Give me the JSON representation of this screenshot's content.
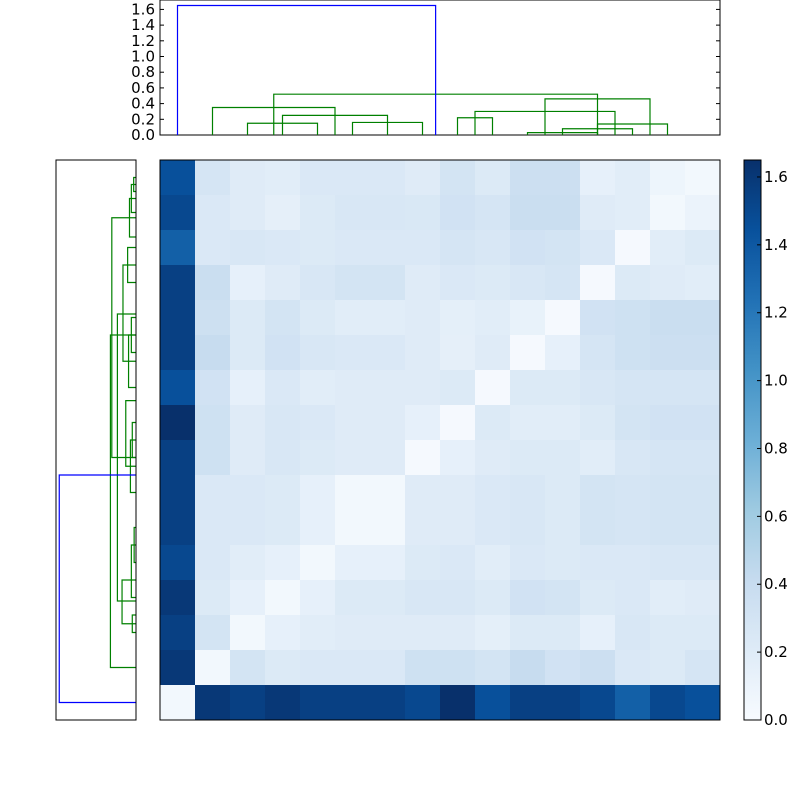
{
  "chart_data": {
    "type": "heatmap",
    "title": "",
    "xlabel": "",
    "ylabel": "",
    "colormap": "Blues",
    "colors": {
      "dendrogram_cross_cluster": "#0000ff",
      "dendrogram_within_cluster": "#008000",
      "axes_frame": "#000000"
    },
    "matrix": [
      [
        1.45,
        0.28,
        0.2,
        0.18,
        0.24,
        0.24,
        0.24,
        0.2,
        0.3,
        0.22,
        0.36,
        0.36,
        0.14,
        0.18,
        0.08,
        0.04
      ],
      [
        1.5,
        0.24,
        0.2,
        0.15,
        0.22,
        0.26,
        0.26,
        0.25,
        0.32,
        0.28,
        0.38,
        0.38,
        0.2,
        0.18,
        0.04,
        0.1
      ],
      [
        1.35,
        0.24,
        0.26,
        0.24,
        0.22,
        0.24,
        0.24,
        0.24,
        0.28,
        0.26,
        0.32,
        0.3,
        0.24,
        0.02,
        0.18,
        0.22
      ],
      [
        1.55,
        0.38,
        0.14,
        0.2,
        0.26,
        0.3,
        0.3,
        0.2,
        0.24,
        0.22,
        0.26,
        0.28,
        0.02,
        0.22,
        0.2,
        0.18
      ],
      [
        1.55,
        0.35,
        0.22,
        0.3,
        0.22,
        0.18,
        0.18,
        0.2,
        0.16,
        0.18,
        0.12,
        0.02,
        0.32,
        0.34,
        0.38,
        0.38
      ],
      [
        1.55,
        0.4,
        0.22,
        0.32,
        0.26,
        0.24,
        0.24,
        0.2,
        0.15,
        0.2,
        0.02,
        0.14,
        0.28,
        0.34,
        0.36,
        0.36
      ],
      [
        1.45,
        0.32,
        0.14,
        0.24,
        0.18,
        0.2,
        0.2,
        0.2,
        0.22,
        0.02,
        0.22,
        0.22,
        0.26,
        0.28,
        0.28,
        0.28
      ],
      [
        1.65,
        0.34,
        0.2,
        0.26,
        0.24,
        0.2,
        0.2,
        0.14,
        0.02,
        0.22,
        0.18,
        0.18,
        0.22,
        0.3,
        0.32,
        0.32
      ],
      [
        1.55,
        0.34,
        0.2,
        0.26,
        0.22,
        0.2,
        0.2,
        0.02,
        0.14,
        0.2,
        0.22,
        0.22,
        0.18,
        0.26,
        0.28,
        0.28
      ],
      [
        1.55,
        0.24,
        0.24,
        0.22,
        0.14,
        0.04,
        0.04,
        0.2,
        0.2,
        0.24,
        0.26,
        0.22,
        0.3,
        0.28,
        0.3,
        0.3
      ],
      [
        1.55,
        0.24,
        0.24,
        0.22,
        0.14,
        0.04,
        0.04,
        0.2,
        0.2,
        0.24,
        0.26,
        0.22,
        0.3,
        0.28,
        0.3,
        0.3
      ],
      [
        1.5,
        0.24,
        0.18,
        0.14,
        0.04,
        0.14,
        0.14,
        0.22,
        0.24,
        0.18,
        0.24,
        0.22,
        0.24,
        0.24,
        0.26,
        0.26
      ],
      [
        1.6,
        0.22,
        0.14,
        0.04,
        0.14,
        0.22,
        0.22,
        0.26,
        0.26,
        0.22,
        0.32,
        0.3,
        0.22,
        0.24,
        0.18,
        0.2
      ],
      [
        1.55,
        0.3,
        0.04,
        0.14,
        0.18,
        0.2,
        0.2,
        0.2,
        0.2,
        0.16,
        0.22,
        0.22,
        0.14,
        0.26,
        0.22,
        0.22
      ],
      [
        1.6,
        0.04,
        0.3,
        0.22,
        0.24,
        0.24,
        0.24,
        0.34,
        0.34,
        0.3,
        0.4,
        0.32,
        0.36,
        0.24,
        0.22,
        0.28
      ],
      [
        0.04,
        1.6,
        1.55,
        1.6,
        1.55,
        1.55,
        1.55,
        1.5,
        1.65,
        1.45,
        1.55,
        1.55,
        1.5,
        1.35,
        1.5,
        1.45
      ]
    ],
    "colorbar": {
      "range": [
        0,
        1.65
      ],
      "ticks": [
        "0.0",
        "0.2",
        "0.4",
        "0.6",
        "0.8",
        "1.0",
        "1.2",
        "1.4",
        "1.6"
      ]
    },
    "top_dendrogram": {
      "ylim": [
        0,
        1.72
      ],
      "ticks": [
        "0.0",
        "0.2",
        "0.4",
        "0.6",
        "0.8",
        "1.0",
        "1.2",
        "1.4",
        "1.6"
      ],
      "links": [
        {
          "a": 10.5,
          "b": 12.5,
          "h": 0.03,
          "c": "within"
        },
        {
          "a": 11.5,
          "b": 13.5,
          "h": 0.08,
          "c": "within"
        },
        {
          "a": 12.5,
          "b": 14.5,
          "h": 0.14,
          "c": "within"
        },
        {
          "a": 2.5,
          "b": 4.5,
          "h": 0.15,
          "c": "within"
        },
        {
          "a": 5.5,
          "b": 7.5,
          "h": 0.16,
          "c": "within"
        },
        {
          "a": 3.5,
          "b": 6.5,
          "h": 0.25,
          "c": "within"
        },
        {
          "a": 8.5,
          "b": 9.5,
          "h": 0.22,
          "c": "within"
        },
        {
          "a": 9.0,
          "b": 13.0,
          "h": 0.3,
          "c": "within"
        },
        {
          "a": 1.5,
          "b": 5.0,
          "h": 0.35,
          "c": "within"
        },
        {
          "a": 11.0,
          "b": 14.0,
          "h": 0.46,
          "c": "within"
        },
        {
          "a": 3.25,
          "b": 12.5,
          "h": 0.52,
          "c": "within"
        },
        {
          "a": 0.5,
          "b": 7.875,
          "h": 1.65,
          "c": "cross"
        }
      ]
    },
    "left_dendrogram": {
      "xlim": [
        0,
        1.72
      ],
      "links": [
        {
          "a": 0.5,
          "b": 0.9,
          "h": 0.05,
          "c": "within"
        },
        {
          "a": 0.7,
          "b": 1.5,
          "h": 0.1,
          "c": "within"
        },
        {
          "a": 1.1,
          "b": 2.2,
          "h": 0.14,
          "c": "within"
        },
        {
          "a": 2.5,
          "b": 3.5,
          "h": 0.18,
          "c": "within"
        },
        {
          "a": 4.5,
          "b": 5.5,
          "h": 0.1,
          "c": "within"
        },
        {
          "a": 5.0,
          "b": 6.5,
          "h": 0.16,
          "c": "within"
        },
        {
          "a": 7.5,
          "b": 8.5,
          "h": 0.08,
          "c": "within"
        },
        {
          "a": 8.0,
          "b": 9.5,
          "h": 0.12,
          "c": "within"
        },
        {
          "a": 3.0,
          "b": 5.75,
          "h": 0.28,
          "c": "within"
        },
        {
          "a": 6.875,
          "b": 8.75,
          "h": 0.22,
          "c": "within"
        },
        {
          "a": 10.5,
          "b": 11.5,
          "h": 0.04,
          "c": "within"
        },
        {
          "a": 11.0,
          "b": 12.5,
          "h": 0.1,
          "c": "within"
        },
        {
          "a": 13.0,
          "b": 13.5,
          "h": 0.08,
          "c": "within"
        },
        {
          "a": 12.0,
          "b": 13.25,
          "h": 0.3,
          "c": "within"
        },
        {
          "a": 4.4,
          "b": 12.6,
          "h": 0.4,
          "c": "within"
        },
        {
          "a": 1.65,
          "b": 8.5,
          "h": 0.52,
          "c": "within"
        },
        {
          "a": 5.0,
          "b": 14.5,
          "h": 0.55,
          "c": "within"
        },
        {
          "a": 9.0,
          "b": 15.5,
          "h": 1.65,
          "c": "cross"
        }
      ]
    }
  }
}
